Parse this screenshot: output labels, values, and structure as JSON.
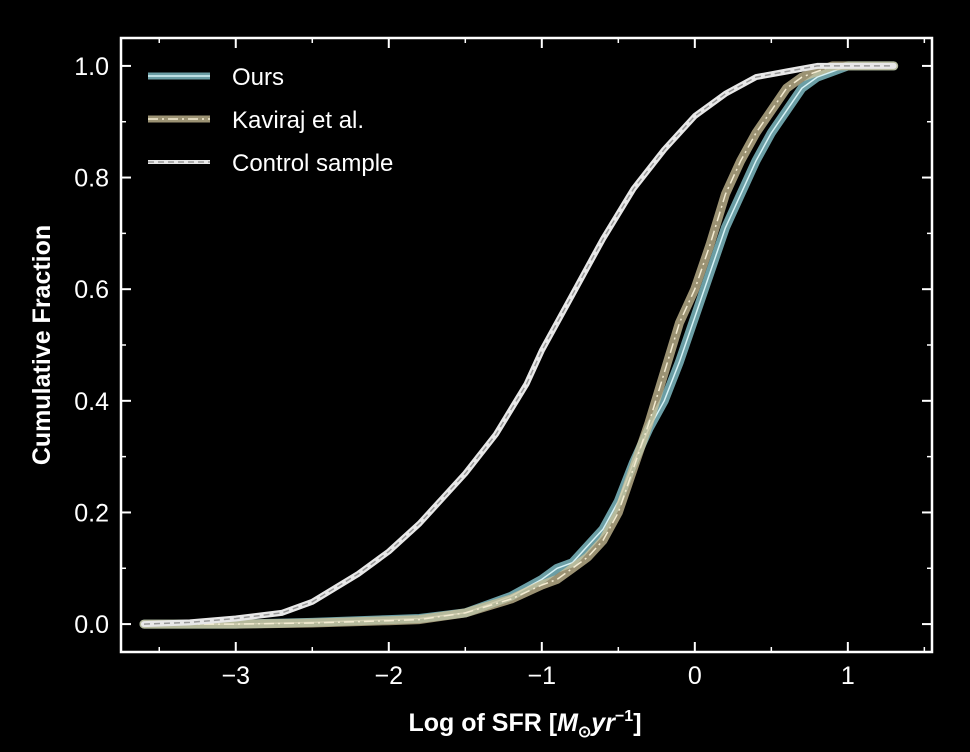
{
  "chart_data": {
    "type": "line",
    "title": "",
    "xlabel_main": "Log of SFR [",
    "xlabel_unit": "M",
    "xlabel_sub": "⊙",
    "xlabel_unit2": "yr",
    "xlabel_sup": "−1",
    "xlabel_close": "]",
    "ylabel": "Cumulative Fraction",
    "xlim": [
      -3.75,
      1.55
    ],
    "ylim": [
      -0.05,
      1.05
    ],
    "xticks": [
      {
        "value": -3,
        "label": "−3"
      },
      {
        "value": -2,
        "label": "−2"
      },
      {
        "value": -1,
        "label": "−1"
      },
      {
        "value": 0,
        "label": "0"
      },
      {
        "value": 1,
        "label": "1"
      }
    ],
    "yticks": [
      {
        "value": 0.0,
        "label": "0.0"
      },
      {
        "value": 0.2,
        "label": "0.2"
      },
      {
        "value": 0.4,
        "label": "0.4"
      },
      {
        "value": 0.6,
        "label": "0.6"
      },
      {
        "value": 0.8,
        "label": "0.8"
      },
      {
        "value": 1.0,
        "label": "1.0"
      }
    ],
    "grid": false,
    "legend_position": "top-left",
    "series": [
      {
        "name": "Ours",
        "style": "solid-band",
        "color": "#8fd3dc",
        "x": [
          -3.6,
          -3.0,
          -2.5,
          -2.0,
          -1.8,
          -1.5,
          -1.2,
          -1.0,
          -0.9,
          -0.8,
          -0.7,
          -0.6,
          -0.5,
          -0.4,
          -0.3,
          -0.2,
          -0.1,
          0.0,
          0.1,
          0.2,
          0.3,
          0.4,
          0.5,
          0.6,
          0.7,
          0.8,
          0.9,
          1.0,
          1.1,
          1.3
        ],
        "y": [
          0.0,
          0.0,
          0.003,
          0.008,
          0.01,
          0.02,
          0.05,
          0.08,
          0.1,
          0.11,
          0.14,
          0.17,
          0.22,
          0.29,
          0.35,
          0.4,
          0.47,
          0.55,
          0.63,
          0.71,
          0.77,
          0.83,
          0.88,
          0.92,
          0.96,
          0.98,
          0.99,
          1.0,
          1.0,
          1.0
        ]
      },
      {
        "name": "Kaviraj et al.",
        "style": "dash-dot-band",
        "color": "#cfc39a",
        "x": [
          -3.6,
          -3.0,
          -2.5,
          -2.0,
          -1.8,
          -1.5,
          -1.2,
          -1.0,
          -0.9,
          -0.8,
          -0.7,
          -0.6,
          -0.5,
          -0.4,
          -0.3,
          -0.2,
          -0.1,
          0.0,
          0.1,
          0.2,
          0.3,
          0.4,
          0.5,
          0.6,
          0.7,
          0.8,
          0.9,
          1.0,
          1.1,
          1.3
        ],
        "y": [
          0.0,
          0.0,
          0.002,
          0.006,
          0.008,
          0.02,
          0.045,
          0.07,
          0.08,
          0.1,
          0.12,
          0.15,
          0.2,
          0.28,
          0.36,
          0.45,
          0.54,
          0.6,
          0.68,
          0.77,
          0.83,
          0.88,
          0.92,
          0.96,
          0.98,
          0.99,
          1.0,
          1.0,
          1.0,
          1.0
        ]
      },
      {
        "name": "Control sample",
        "style": "dashed",
        "color": "#e8e8e8",
        "x": [
          -3.6,
          -3.3,
          -3.0,
          -2.7,
          -2.5,
          -2.2,
          -2.0,
          -1.8,
          -1.5,
          -1.3,
          -1.1,
          -1.0,
          -0.8,
          -0.6,
          -0.4,
          -0.2,
          0.0,
          0.2,
          0.4,
          0.6,
          0.8,
          1.0,
          1.2,
          1.3
        ],
        "y": [
          0.0,
          0.003,
          0.01,
          0.02,
          0.04,
          0.09,
          0.13,
          0.18,
          0.27,
          0.34,
          0.43,
          0.49,
          0.59,
          0.69,
          0.78,
          0.85,
          0.91,
          0.95,
          0.98,
          0.99,
          1.0,
          1.0,
          1.0,
          1.0
        ]
      }
    ]
  }
}
